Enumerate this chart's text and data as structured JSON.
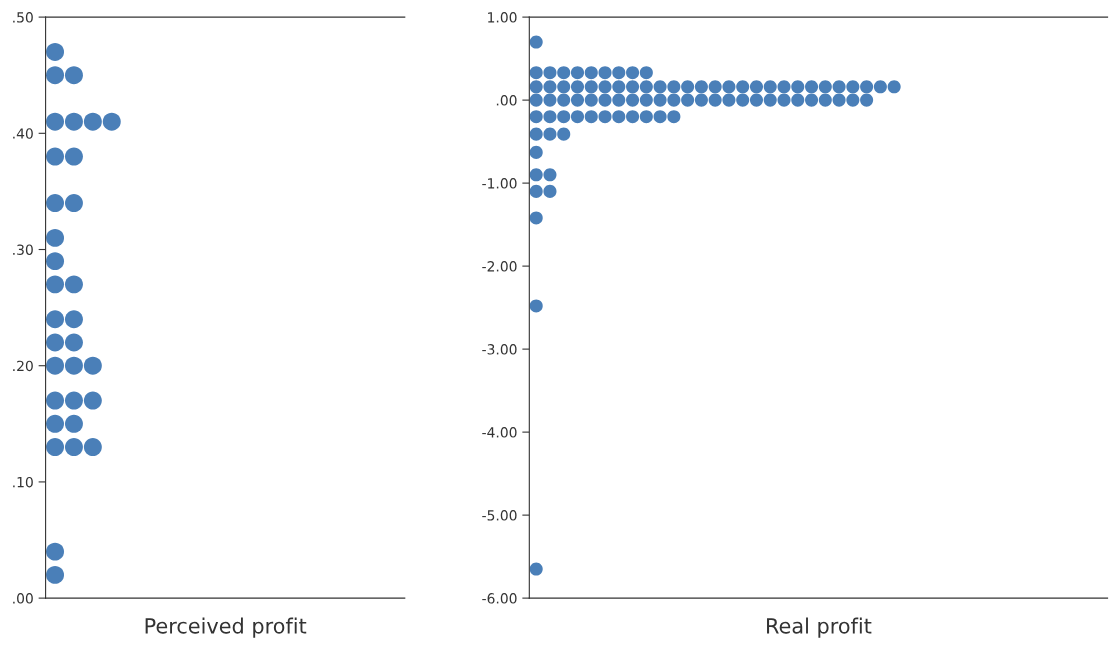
{
  "chart_data": [
    {
      "type": "scatter",
      "xlabel": "Perceived profit",
      "marker": "circle",
      "grid": false,
      "tick_labels": "y",
      "categories": [
        null,
        null,
        null,
        null,
        null,
        null,
        null,
        null,
        null,
        null,
        null,
        null,
        null,
        null,
        null,
        null,
        null,
        null,
        null
      ],
      "ylim": [
        0,
        0.5
      ],
      "yticks": [
        {
          "value": 0,
          "label": ".00"
        },
        {
          "value": 0.1,
          "label": ".10"
        },
        {
          "value": 0.2,
          "label": ".20"
        },
        {
          "value": 0.3,
          "label": ".30"
        },
        {
          "value": 0.4,
          "label": ".40"
        },
        {
          "value": 0.5,
          "label": ".50"
        }
      ],
      "series": [
        {
          "color": "#4a7fb8",
          "values": [
            0.47,
            null,
            null,
            null,
            null,
            null,
            null,
            null,
            null,
            null,
            null,
            null,
            null,
            null,
            null,
            null,
            null,
            null,
            null
          ]
        },
        {
          "color": "#4a7fb8",
          "values": [
            0.45,
            0.45,
            null,
            null,
            null,
            null,
            null,
            null,
            null,
            null,
            null,
            null,
            null,
            null,
            null,
            null,
            null,
            null,
            null
          ]
        },
        {
          "color": "#4a7fb8",
          "values": [
            0.41,
            0.41,
            0.41,
            0.41,
            null,
            null,
            null,
            null,
            null,
            null,
            null,
            null,
            null,
            null,
            null,
            null,
            null,
            null,
            null
          ]
        },
        {
          "color": "#4a7fb8",
          "values": [
            0.38,
            0.38,
            null,
            null,
            null,
            null,
            null,
            null,
            null,
            null,
            null,
            null,
            null,
            null,
            null,
            null,
            null,
            null,
            null
          ]
        },
        {
          "color": "#4a7fb8",
          "values": [
            0.34,
            0.34,
            null,
            null,
            null,
            null,
            null,
            null,
            null,
            null,
            null,
            null,
            null,
            null,
            null,
            null,
            null,
            null,
            null
          ]
        },
        {
          "color": "#4a7fb8",
          "values": [
            0.31,
            null,
            null,
            null,
            null,
            null,
            null,
            null,
            null,
            null,
            null,
            null,
            null,
            null,
            null,
            null,
            null,
            null,
            null
          ]
        },
        {
          "color": "#4a7fb8",
          "values": [
            0.29,
            null,
            null,
            null,
            null,
            null,
            null,
            null,
            null,
            null,
            null,
            null,
            null,
            null,
            null,
            null,
            null,
            null,
            null
          ]
        },
        {
          "color": "#4a7fb8",
          "values": [
            0.27,
            0.27,
            null,
            null,
            null,
            null,
            null,
            null,
            null,
            null,
            null,
            null,
            null,
            null,
            null,
            null,
            null,
            null,
            null
          ]
        },
        {
          "color": "#4a7fb8",
          "values": [
            0.24,
            0.24,
            null,
            null,
            null,
            null,
            null,
            null,
            null,
            null,
            null,
            null,
            null,
            null,
            null,
            null,
            null,
            null,
            null
          ]
        },
        {
          "color": "#4a7fb8",
          "values": [
            0.22,
            0.22,
            null,
            null,
            null,
            null,
            null,
            null,
            null,
            null,
            null,
            null,
            null,
            null,
            null,
            null,
            null,
            null,
            null
          ]
        },
        {
          "color": "#4a7fb8",
          "values": [
            0.2,
            0.2,
            0.2,
            null,
            null,
            null,
            null,
            null,
            null,
            null,
            null,
            null,
            null,
            null,
            null,
            null,
            null,
            null,
            null
          ]
        },
        {
          "color": "#4a7fb8",
          "values": [
            0.17,
            0.17,
            0.17,
            null,
            null,
            null,
            null,
            null,
            null,
            null,
            null,
            null,
            null,
            null,
            null,
            null,
            null,
            null,
            null
          ]
        },
        {
          "color": "#4a7fb8",
          "values": [
            0.15,
            0.15,
            null,
            null,
            null,
            null,
            null,
            null,
            null,
            null,
            null,
            null,
            null,
            null,
            null,
            null,
            null,
            null,
            null
          ]
        },
        {
          "color": "#4a7fb8",
          "values": [
            0.13,
            0.13,
            0.13,
            null,
            null,
            null,
            null,
            null,
            null,
            null,
            null,
            null,
            null,
            null,
            null,
            null,
            null,
            null,
            null
          ]
        },
        {
          "color": "#4a7fb8",
          "values": [
            0.04,
            null,
            null,
            null,
            null,
            null,
            null,
            null,
            null,
            null,
            null,
            null,
            null,
            null,
            null,
            null,
            null,
            null,
            null
          ]
        },
        {
          "color": "#4a7fb8",
          "values": [
            0.02,
            null,
            null,
            null,
            null,
            null,
            null,
            null,
            null,
            null,
            null,
            null,
            null,
            null,
            null,
            null,
            null,
            null,
            null
          ]
        }
      ]
    },
    {
      "type": "scatter",
      "xlabel": "Real profit",
      "marker": "circle",
      "grid": false,
      "tick_labels": "y",
      "categories": [
        null,
        null,
        null,
        null,
        null,
        null,
        null,
        null,
        null,
        null,
        null,
        null,
        null,
        null,
        null,
        null,
        null,
        null,
        null,
        null,
        null,
        null,
        null,
        null,
        null,
        null,
        null,
        null,
        null,
        null,
        null,
        null,
        null,
        null,
        null,
        null,
        null,
        null,
        null,
        null,
        null,
        null
      ],
      "ylim": [
        -6,
        1
      ],
      "yticks": [
        {
          "value": -6,
          "label": "-6.00"
        },
        {
          "value": -5,
          "label": "-5.00"
        },
        {
          "value": -4,
          "label": "-4.00"
        },
        {
          "value": -3,
          "label": "-3.00"
        },
        {
          "value": -2,
          "label": "-2.00"
        },
        {
          "value": -1,
          "label": "-1.00"
        },
        {
          "value": 0,
          "label": ".00"
        },
        {
          "value": 1,
          "label": "1.00"
        }
      ],
      "series": [
        {
          "color": "#4a7fb8",
          "values": [
            0.7,
            null,
            null,
            null,
            null,
            null,
            null,
            null,
            null,
            null,
            null,
            null,
            null,
            null,
            null,
            null,
            null,
            null,
            null,
            null,
            null,
            null,
            null,
            null,
            null,
            null,
            null,
            null,
            null,
            null,
            null,
            null,
            null,
            null,
            null,
            null,
            null,
            null,
            null,
            null,
            null,
            null
          ]
        },
        {
          "color": "#4a7fb8",
          "values": [
            0.33,
            0.33,
            0.33,
            0.33,
            0.33,
            0.33,
            0.33,
            0.33,
            0.33,
            null,
            null,
            null,
            null,
            null,
            null,
            null,
            null,
            null,
            null,
            null,
            null,
            null,
            null,
            null,
            null,
            null,
            null,
            null,
            null,
            null,
            null,
            null,
            null,
            null,
            null,
            null,
            null,
            null,
            null,
            null,
            null,
            null
          ]
        },
        {
          "color": "#4a7fb8",
          "values": [
            0.16,
            0.16,
            0.16,
            0.16,
            0.16,
            0.16,
            0.16,
            0.16,
            0.16,
            0.16,
            0.16,
            0.16,
            0.16,
            0.16,
            0.16,
            0.16,
            0.16,
            0.16,
            0.16,
            0.16,
            0.16,
            0.16,
            0.16,
            0.16,
            0.16,
            0.16,
            0.16,
            null,
            null,
            null,
            null,
            null,
            null,
            null,
            null,
            null,
            null,
            null,
            null,
            null,
            null,
            null
          ]
        },
        {
          "color": "#4a7fb8",
          "values": [
            0.0,
            0.0,
            0.0,
            0.0,
            0.0,
            0.0,
            0.0,
            0.0,
            0.0,
            0.0,
            0.0,
            0.0,
            0.0,
            0.0,
            0.0,
            0.0,
            0.0,
            0.0,
            0.0,
            0.0,
            0.0,
            0.0,
            0.0,
            0.0,
            0.0,
            null,
            null,
            null,
            null,
            null,
            null,
            null,
            null,
            null,
            null,
            null,
            null,
            null,
            null,
            null,
            null,
            null
          ]
        },
        {
          "color": "#4a7fb8",
          "values": [
            -0.2,
            -0.2,
            -0.2,
            -0.2,
            -0.2,
            -0.2,
            -0.2,
            -0.2,
            -0.2,
            -0.2,
            -0.2,
            null,
            null,
            null,
            null,
            null,
            null,
            null,
            null,
            null,
            null,
            null,
            null,
            null,
            null,
            null,
            null,
            null,
            null,
            null,
            null,
            null,
            null,
            null,
            null,
            null,
            null,
            null,
            null,
            null,
            null,
            null
          ]
        },
        {
          "color": "#4a7fb8",
          "values": [
            -0.41,
            -0.41,
            -0.41,
            null,
            null,
            null,
            null,
            null,
            null,
            null,
            null,
            null,
            null,
            null,
            null,
            null,
            null,
            null,
            null,
            null,
            null,
            null,
            null,
            null,
            null,
            null,
            null,
            null,
            null,
            null,
            null,
            null,
            null,
            null,
            null,
            null,
            null,
            null,
            null,
            null,
            null,
            null
          ]
        },
        {
          "color": "#4a7fb8",
          "values": [
            -0.63,
            null,
            null,
            null,
            null,
            null,
            null,
            null,
            null,
            null,
            null,
            null,
            null,
            null,
            null,
            null,
            null,
            null,
            null,
            null,
            null,
            null,
            null,
            null,
            null,
            null,
            null,
            null,
            null,
            null,
            null,
            null,
            null,
            null,
            null,
            null,
            null,
            null,
            null,
            null,
            null,
            null
          ]
        },
        {
          "color": "#4a7fb8",
          "values": [
            -0.9,
            -0.9,
            null,
            null,
            null,
            null,
            null,
            null,
            null,
            null,
            null,
            null,
            null,
            null,
            null,
            null,
            null,
            null,
            null,
            null,
            null,
            null,
            null,
            null,
            null,
            null,
            null,
            null,
            null,
            null,
            null,
            null,
            null,
            null,
            null,
            null,
            null,
            null,
            null,
            null,
            null,
            null
          ]
        },
        {
          "color": "#4a7fb8",
          "values": [
            -1.1,
            -1.1,
            null,
            null,
            null,
            null,
            null,
            null,
            null,
            null,
            null,
            null,
            null,
            null,
            null,
            null,
            null,
            null,
            null,
            null,
            null,
            null,
            null,
            null,
            null,
            null,
            null,
            null,
            null,
            null,
            null,
            null,
            null,
            null,
            null,
            null,
            null,
            null,
            null,
            null,
            null,
            null
          ]
        },
        {
          "color": "#4a7fb8",
          "values": [
            -1.42,
            null,
            null,
            null,
            null,
            null,
            null,
            null,
            null,
            null,
            null,
            null,
            null,
            null,
            null,
            null,
            null,
            null,
            null,
            null,
            null,
            null,
            null,
            null,
            null,
            null,
            null,
            null,
            null,
            null,
            null,
            null,
            null,
            null,
            null,
            null,
            null,
            null,
            null,
            null,
            null,
            null
          ]
        },
        {
          "color": "#4a7fb8",
          "values": [
            -2.48,
            null,
            null,
            null,
            null,
            null,
            null,
            null,
            null,
            null,
            null,
            null,
            null,
            null,
            null,
            null,
            null,
            null,
            null,
            null,
            null,
            null,
            null,
            null,
            null,
            null,
            null,
            null,
            null,
            null,
            null,
            null,
            null,
            null,
            null,
            null,
            null,
            null,
            null,
            null,
            null,
            null
          ]
        },
        {
          "color": "#4a7fb8",
          "values": [
            -5.65,
            null,
            null,
            null,
            null,
            null,
            null,
            null,
            null,
            null,
            null,
            null,
            null,
            null,
            null,
            null,
            null,
            null,
            null,
            null,
            null,
            null,
            null,
            null,
            null,
            null,
            null,
            null,
            null,
            null,
            null,
            null,
            null,
            null,
            null,
            null,
            null,
            null,
            null,
            null,
            null,
            null
          ]
        }
      ]
    }
  ]
}
